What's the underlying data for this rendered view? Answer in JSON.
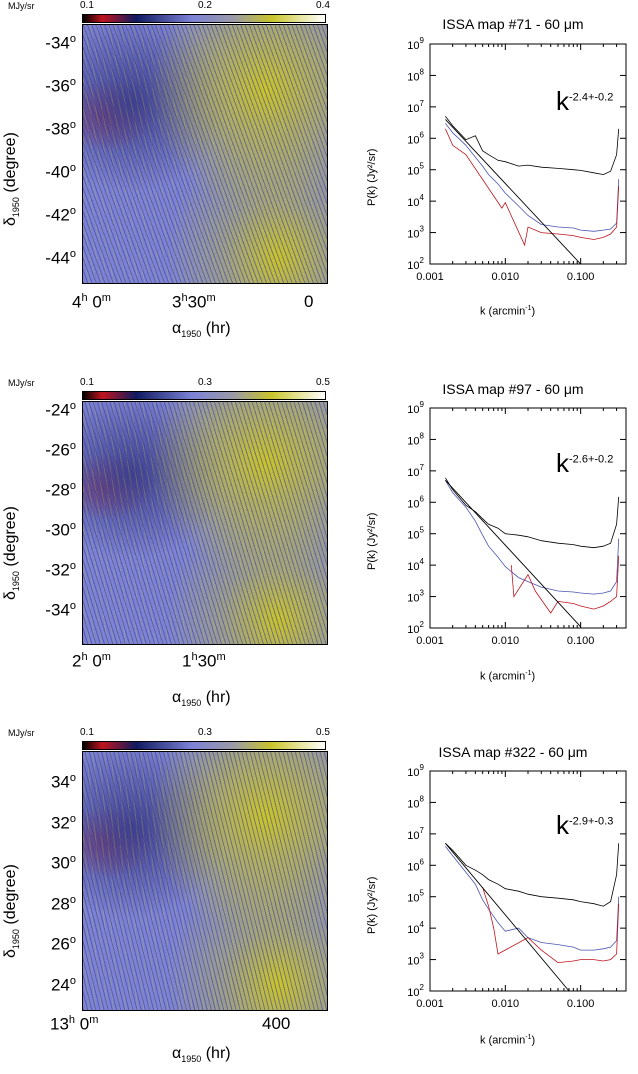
{
  "figure_panels": [
    {
      "map": {
        "unit": "MJy/sr",
        "cb_ticks": [
          "0.1",
          "0.2",
          "0.4"
        ],
        "y_ticks": [
          "-34",
          "-36",
          "-38",
          "-40",
          "-42",
          "-44"
        ],
        "y_label_main": "δ",
        "y_label_sub": "1950",
        "y_label_rest": " (degree)",
        "x_ticks": [
          {
            "main": "4",
            "sup": "h",
            "main2": " 0",
            "sup2": "m"
          },
          {
            "main": "3",
            "sup": "h",
            "main2": "30",
            "sup2": "m"
          },
          {
            "main": "0",
            "sup": "",
            "main2": "",
            "sup2": ""
          }
        ],
        "x_label_main": "α",
        "x_label_sub": "1950",
        "x_label_rest": " (hr)"
      },
      "spectrum": {
        "title": "ISSA map #71 - 60 μm",
        "slope_base": "k",
        "slope_exp": "-2.4+-0.2",
        "y_label": "P(k) (Jy²/sr)",
        "x_label_main": "k (arcmin",
        "x_label_sup": "-1",
        "x_label_end": ")"
      }
    },
    {
      "map": {
        "unit": "MJy/sr",
        "cb_ticks": [
          "0.1",
          "0.3",
          "0.5"
        ],
        "y_ticks": [
          "-24",
          "-26",
          "-28",
          "-30",
          "-32",
          "-34"
        ],
        "y_label_main": "δ",
        "y_label_sub": "1950",
        "y_label_rest": " (degree)",
        "x_ticks": [
          {
            "main": "2",
            "sup": "h",
            "main2": " 0",
            "sup2": "m"
          },
          {
            "main": "1",
            "sup": "h",
            "main2": "30",
            "sup2": "m"
          }
        ],
        "x_label_main": "α",
        "x_label_sub": "1950",
        "x_label_rest": " (hr)"
      },
      "spectrum": {
        "title": "ISSA map #97 - 60 μm",
        "slope_base": "k",
        "slope_exp": "-2.6+-0.2",
        "y_label": "P(k) (Jy²/sr)",
        "x_label_main": "k (arcmin",
        "x_label_sup": "-1",
        "x_label_end": ")"
      }
    },
    {
      "map": {
        "unit": "MJy/sr",
        "cb_ticks": [
          "0.1",
          "0.3",
          "0.5"
        ],
        "y_ticks": [
          "34",
          "32",
          "30",
          "28",
          "26",
          "24"
        ],
        "y_label_main": "δ",
        "y_label_sub": "1950",
        "y_label_rest": " (degree)",
        "x_ticks": [
          {
            "main": "13",
            "sup": "h",
            "main2": " 0",
            "sup2": "m"
          },
          {
            "main": "400",
            "sup": "",
            "main2": "",
            "sup2": ""
          }
        ],
        "x_label_main": "α",
        "x_label_sub": "1950",
        "x_label_rest": " (hr)"
      },
      "spectrum": {
        "title": "ISSA map #322 - 60 μm",
        "slope_base": "k",
        "slope_exp": "-2.9+-0.3",
        "y_label": "P(k) (Jy²/sr)",
        "x_label_main": "k (arcmin",
        "x_label_sup": "-1",
        "x_label_end": ")"
      }
    }
  ],
  "spectrum_axis": {
    "x_ticks": [
      "0.001",
      "0.010",
      "0.100"
    ],
    "y_ticks": [
      {
        "base": "10",
        "exp": "9"
      },
      {
        "base": "10",
        "exp": "8"
      },
      {
        "base": "10",
        "exp": "7"
      },
      {
        "base": "10",
        "exp": "6"
      },
      {
        "base": "10",
        "exp": "5"
      },
      {
        "base": "10",
        "exp": "4"
      },
      {
        "base": "10",
        "exp": "3"
      },
      {
        "base": "10",
        "exp": "2"
      }
    ],
    "y_tick_sup_o": "o"
  },
  "colors": {
    "map_base": "#7c82d6",
    "map_dark": "#3d3f8e",
    "map_yellow": "#c9c42a",
    "map_red": "#c0141e",
    "total_spectrum": "#000000",
    "noise_spectrum": "#c0141e",
    "corrected_spectrum": "#4a55b0"
  },
  "chart_data": [
    {
      "type": "line",
      "title": "ISSA map #71 - 60 μm",
      "xlabel": "k (arcmin-1)",
      "ylabel": "P(k) (Jy²/sr)",
      "xscale": "log",
      "yscale": "log",
      "xlim": [
        0.001,
        0.4
      ],
      "ylim": [
        100,
        1000000000
      ],
      "fit_slope": "-2.4+-0.2",
      "series": [
        {
          "x": [
            0.0016,
            0.002,
            0.003,
            0.004,
            0.005,
            0.006,
            0.008,
            0.01,
            0.015,
            0.02,
            0.03,
            0.05,
            0.08,
            0.1,
            0.15,
            0.2,
            0.25,
            0.3,
            0.32
          ],
          "y": [
            5000000,
            2500000,
            900000,
            1200000,
            400000,
            300000,
            200000,
            180000,
            130000,
            140000,
            120000,
            110000,
            100000,
            95000,
            80000,
            70000,
            90000,
            300000,
            2000000
          ]
        },
        {
          "x": [
            0.0016,
            0.002,
            0.003,
            0.004,
            0.005,
            0.006,
            0.008,
            0.01,
            0.015,
            0.02,
            0.03,
            0.05,
            0.08,
            0.1,
            0.15,
            0.2,
            0.25,
            0.3,
            0.32
          ],
          "y": [
            3000000,
            1500000,
            600000,
            250000,
            130000,
            70000,
            35000,
            18000,
            7000,
            3500,
            1800,
            1500,
            1400,
            1200,
            1100,
            1200,
            1300,
            2000,
            50000
          ]
        },
        {
          "x": [
            0.0016,
            0.002,
            0.003,
            0.009,
            0.01,
            0.018,
            0.02,
            0.03,
            0.05,
            0.08,
            0.1,
            0.15,
            0.2,
            0.25,
            0.3,
            0.32
          ],
          "y": [
            2000000,
            600000,
            300000,
            6000,
            9000,
            400,
            1500,
            1000,
            900,
            800,
            700,
            600,
            700,
            900,
            1500,
            30000
          ]
        },
        {
          "x": [
            0.0016,
            0.1
          ],
          "y": [
            4000000,
            100
          ]
        }
      ]
    },
    {
      "type": "line",
      "title": "ISSA map #97 - 60 μm",
      "xlabel": "k (arcmin-1)",
      "ylabel": "P(k) (Jy²/sr)",
      "xscale": "log",
      "yscale": "log",
      "xlim": [
        0.001,
        0.4
      ],
      "ylim": [
        100,
        1000000000
      ],
      "fit_slope": "-2.6+-0.2",
      "series": [
        {
          "x": [
            0.0016,
            0.002,
            0.003,
            0.004,
            0.005,
            0.006,
            0.008,
            0.01,
            0.015,
            0.02,
            0.03,
            0.05,
            0.08,
            0.1,
            0.15,
            0.2,
            0.25,
            0.3,
            0.32
          ],
          "y": [
            6000000,
            2500000,
            800000,
            500000,
            300000,
            200000,
            150000,
            100000,
            90000,
            80000,
            60000,
            50000,
            45000,
            40000,
            36000,
            40000,
            50000,
            200000,
            1500000
          ]
        },
        {
          "x": [
            0.0016,
            0.002,
            0.003,
            0.004,
            0.005,
            0.006,
            0.008,
            0.01,
            0.015,
            0.02,
            0.03,
            0.05,
            0.08,
            0.1,
            0.15,
            0.2,
            0.25,
            0.3,
            0.32
          ],
          "y": [
            5000000,
            2000000,
            700000,
            250000,
            90000,
            40000,
            18000,
            9000,
            4000,
            3000,
            2000,
            1500,
            1400,
            1300,
            1200,
            1300,
            1500,
            3000,
            70000
          ]
        },
        {
          "x": [
            0.012,
            0.013,
            0.02,
            0.025,
            0.03,
            0.04,
            0.05,
            0.08,
            0.1,
            0.15,
            0.2,
            0.25,
            0.3,
            0.32
          ],
          "y": [
            10000,
            1000,
            5000,
            1500,
            800,
            300,
            700,
            600,
            500,
            400,
            500,
            700,
            1000,
            20000
          ]
        },
        {
          "x": [
            0.0016,
            0.1
          ],
          "y": [
            5000000,
            110
          ]
        }
      ]
    },
    {
      "type": "line",
      "title": "ISSA map #322 - 60 μm",
      "xlabel": "k (arcmin-1)",
      "ylabel": "P(k) (Jy²/sr)",
      "xscale": "log",
      "yscale": "log",
      "xlim": [
        0.001,
        0.4
      ],
      "ylim": [
        100,
        1000000000
      ],
      "fit_slope": "-2.9+-0.3",
      "series": [
        {
          "x": [
            0.0016,
            0.002,
            0.003,
            0.004,
            0.005,
            0.006,
            0.008,
            0.01,
            0.015,
            0.02,
            0.03,
            0.05,
            0.08,
            0.1,
            0.15,
            0.2,
            0.25,
            0.3,
            0.32
          ],
          "y": [
            5000000,
            3000000,
            1000000,
            700000,
            500000,
            350000,
            250000,
            180000,
            150000,
            120000,
            100000,
            90000,
            80000,
            70000,
            60000,
            50000,
            70000,
            500000,
            5000000
          ]
        },
        {
          "x": [
            0.0016,
            0.002,
            0.003,
            0.004,
            0.005,
            0.006,
            0.008,
            0.01,
            0.015,
            0.02,
            0.03,
            0.05,
            0.08,
            0.1,
            0.15,
            0.2,
            0.25,
            0.3,
            0.32
          ],
          "y": [
            4000000,
            2000000,
            600000,
            250000,
            80000,
            40000,
            15000,
            8000,
            10000,
            5000,
            3500,
            3000,
            2500,
            2000,
            2000,
            2200,
            2500,
            4000,
            100000
          ]
        },
        {
          "x": [
            0.005,
            0.006,
            0.007,
            0.008,
            0.02,
            0.03,
            0.05,
            0.08,
            0.1,
            0.15,
            0.2,
            0.25,
            0.3,
            0.32
          ],
          "y": [
            200000,
            50000,
            10000,
            1500,
            5000,
            2000,
            800,
            900,
            1000,
            1000,
            900,
            1000,
            1500,
            60000
          ]
        },
        {
          "x": [
            0.0016,
            0.07
          ],
          "y": [
            5000000,
            100
          ]
        }
      ]
    }
  ]
}
